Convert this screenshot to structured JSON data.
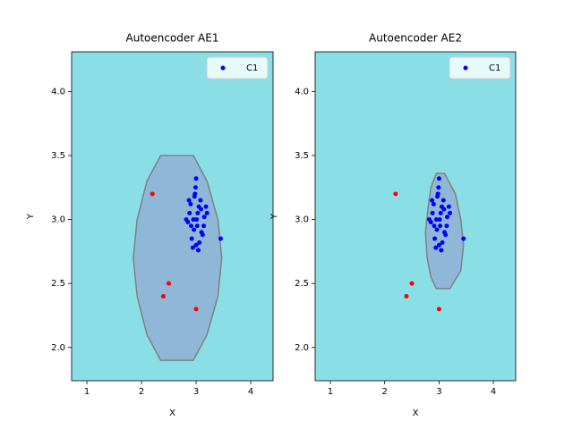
{
  "chart_data": [
    {
      "type": "scatter",
      "title": "Autoencoder AE1",
      "x_label": "X",
      "y_label": "Y",
      "background": "#8adfe6",
      "legend": "upper right",
      "xlim": [
        0.72,
        4.41
      ],
      "xticks": [
        1,
        2,
        3,
        4
      ],
      "ylim": [
        1.74,
        4.31
      ],
      "yticks": [
        {
          "value": 2,
          "label": "2.0"
        },
        2.5,
        {
          "value": 3,
          "label": "3.0"
        },
        3.5,
        {
          "value": 4,
          "label": "4.0"
        }
      ],
      "region": {
        "color": "#8fb8d8",
        "edge": "#808080",
        "x": [
          2.35,
          2.95,
          3.2,
          3.4,
          3.47,
          3.4,
          3.2,
          2.95,
          2.35,
          2.1,
          1.92,
          1.85,
          1.92,
          2.1
        ],
        "y": [
          3.5,
          3.5,
          3.3,
          3.0,
          2.7,
          2.4,
          2.1,
          1.9,
          1.9,
          2.1,
          2.4,
          2.7,
          3.0,
          3.3
        ]
      },
      "series": [
        {
          "name": "C1",
          "color": "#0000ff",
          "x": [
            2.95,
            3.02,
            2.88,
            3.1,
            3.05,
            2.92,
            2.98,
            3.15,
            2.85,
            3.0,
            3.08,
            2.9,
            3.12,
            2.96,
            3.03,
            2.82,
            3.18,
            2.94,
            3.06,
            3.0,
            2.99,
            3.04,
            2.91,
            3.09,
            2.87,
            3.14,
            3.01,
            2.97,
            3.2,
            3.45
          ],
          "y": [
            3.0,
            2.95,
            3.05,
            2.9,
            3.1,
            2.85,
            3.2,
            3.02,
            2.98,
            2.8,
            3.15,
            3.12,
            2.88,
            2.92,
            3.05,
            3.0,
            3.1,
            2.78,
            2.82,
            3.32,
            3.25,
            2.76,
            2.95,
            3.08,
            3.15,
            2.95,
            3.0,
            3.18,
            3.05,
            2.85
          ]
        },
        {
          "color": "#ff0000",
          "x": [
            2.2,
            2.5,
            2.4,
            3.0
          ],
          "y": [
            3.2,
            2.5,
            2.4,
            2.3
          ]
        }
      ]
    },
    {
      "type": "scatter",
      "title": "Autoencoder AE2",
      "x_label": "X",
      "y_label": "Y",
      "background": "#8adfe6",
      "legend": "upper right",
      "xlim": [
        0.72,
        4.41
      ],
      "xticks": [
        1,
        2,
        3,
        4
      ],
      "ylim": [
        1.74,
        4.31
      ],
      "yticks": [
        {
          "value": 2,
          "label": "2.0"
        },
        2.5,
        {
          "value": 3,
          "label": "3.0"
        },
        3.5,
        {
          "value": 4,
          "label": "4.0"
        }
      ],
      "region": {
        "color": "#8fb8d8",
        "edge": "#808080",
        "x": [
          2.95,
          3.1,
          3.3,
          3.4,
          3.45,
          3.4,
          3.2,
          2.95,
          2.85,
          2.78,
          2.75,
          2.8,
          2.85
        ],
        "y": [
          3.36,
          3.36,
          3.2,
          3.0,
          2.8,
          2.6,
          2.46,
          2.46,
          2.55,
          2.7,
          2.9,
          3.1,
          3.25
        ]
      },
      "series": [
        {
          "name": "C1",
          "color": "#0000ff",
          "x": [
            2.95,
            3.02,
            2.88,
            3.1,
            3.05,
            2.92,
            2.98,
            3.15,
            2.85,
            3.0,
            3.08,
            2.9,
            3.12,
            2.96,
            3.03,
            2.82,
            3.18,
            2.94,
            3.06,
            3.0,
            2.99,
            3.04,
            2.91,
            3.09,
            2.87,
            3.14,
            3.01,
            2.97,
            3.2,
            3.45
          ],
          "y": [
            3.0,
            2.95,
            3.05,
            2.9,
            3.1,
            2.85,
            3.2,
            3.02,
            2.98,
            2.8,
            3.15,
            3.12,
            2.88,
            2.92,
            3.05,
            3.0,
            3.1,
            2.78,
            2.82,
            3.32,
            3.25,
            2.76,
            2.95,
            3.08,
            3.15,
            2.95,
            3.0,
            3.18,
            3.05,
            2.85
          ]
        },
        {
          "color": "#ff0000",
          "x": [
            2.2,
            2.5,
            2.4,
            3.0
          ],
          "y": [
            3.2,
            2.5,
            2.4,
            2.3
          ]
        }
      ]
    }
  ]
}
